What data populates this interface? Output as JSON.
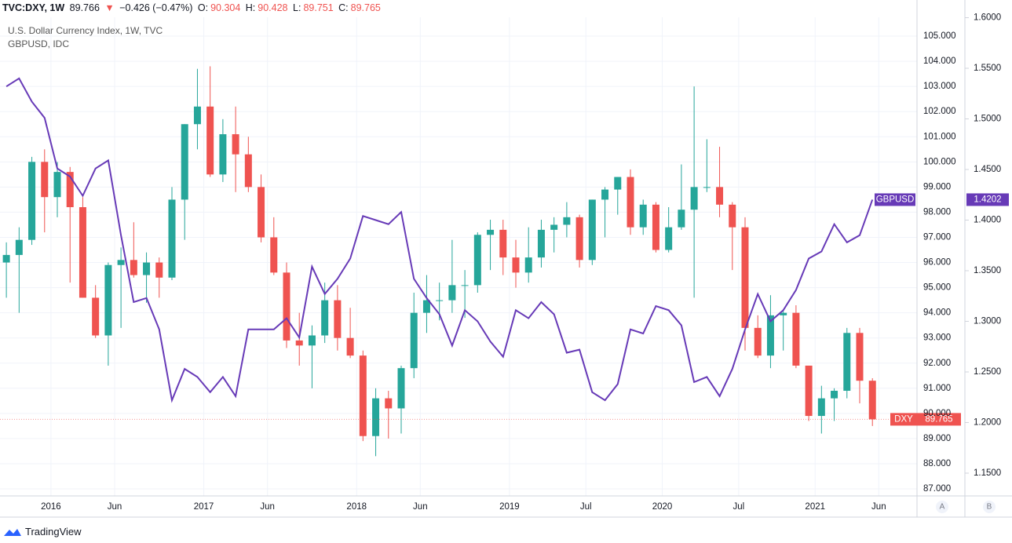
{
  "header": {
    "symbol": "TVC:DXY, 1W",
    "last": "89.766",
    "arrow": "▼",
    "change": "−0.426 (−0.47%)",
    "o_label": "O:",
    "o": "90.304",
    "h_label": "H:",
    "h": "90.428",
    "l_label": "L:",
    "l": "89.751",
    "c_label": "C:",
    "c": "89.765"
  },
  "chart_data": {
    "type": "candlestick",
    "x": [
      "2015-09",
      "2015-10",
      "2015-11",
      "2015-12",
      "2016-01",
      "2016-02",
      "2016-03",
      "2016-04",
      "2016-05",
      "2016-06",
      "2016-07",
      "2016-08",
      "2016-09",
      "2016-10",
      "2016-11",
      "2016-12",
      "2017-01",
      "2017-02",
      "2017-03",
      "2017-04",
      "2017-05",
      "2017-06",
      "2017-07",
      "2017-08",
      "2017-09",
      "2017-10",
      "2017-11",
      "2017-12",
      "2018-01",
      "2018-02",
      "2018-03",
      "2018-04",
      "2018-05",
      "2018-06",
      "2018-07",
      "2018-08",
      "2018-09",
      "2018-10",
      "2018-11",
      "2018-12",
      "2019-01",
      "2019-02",
      "2019-03",
      "2019-04",
      "2019-05",
      "2019-06",
      "2019-07",
      "2019-08",
      "2019-09",
      "2019-10",
      "2019-11",
      "2019-12",
      "2020-01",
      "2020-02",
      "2020-03",
      "2020-04",
      "2020-05",
      "2020-06",
      "2020-07",
      "2020-08",
      "2020-09",
      "2020-10",
      "2020-11",
      "2020-12",
      "2021-01",
      "2021-02",
      "2021-03",
      "2021-04",
      "2021-05"
    ],
    "series": [
      {
        "name": "U.S. Dollar Currency Index, 1W, TVC",
        "tag": "DXY",
        "type": "candlestick",
        "axis": "y",
        "up_color": "#26a69a",
        "down_color": "#ef5350",
        "open": [
          96.0,
          96.3,
          96.9,
          100.0,
          98.6,
          99.6,
          98.2,
          94.6,
          93.1,
          95.9,
          96.1,
          95.5,
          96.0,
          95.4,
          98.5,
          101.5,
          102.2,
          99.5,
          101.1,
          100.3,
          99.0,
          97.0,
          95.6,
          92.9,
          92.7,
          93.1,
          94.5,
          93.0,
          92.3,
          89.1,
          90.6,
          90.2,
          91.8,
          94.0,
          94.5,
          94.5,
          95.1,
          95.1,
          97.1,
          97.3,
          96.2,
          95.6,
          96.2,
          97.3,
          97.5,
          97.8,
          96.1,
          98.5,
          98.9,
          99.4,
          97.4,
          98.3,
          96.5,
          97.4,
          98.1,
          99.0,
          99.0,
          98.3,
          97.4,
          93.4,
          92.3,
          93.9,
          94.0,
          91.9,
          89.9,
          90.6,
          90.9,
          93.2,
          91.3
        ],
        "high": [
          96.8,
          97.4,
          100.2,
          100.5,
          100.0,
          99.8,
          98.6,
          95.1,
          96.0,
          96.6,
          97.6,
          96.4,
          96.2,
          99.0,
          101.5,
          103.7,
          103.8,
          101.7,
          102.2,
          101.0,
          99.5,
          97.8,
          96.0,
          94.0,
          93.5,
          95.2,
          95.1,
          94.2,
          92.5,
          91.0,
          90.9,
          91.9,
          94.8,
          95.5,
          95.2,
          96.9,
          95.7,
          97.2,
          97.7,
          97.7,
          96.9,
          97.4,
          97.7,
          97.8,
          98.4,
          97.9,
          98.5,
          99.0,
          99.4,
          99.7,
          98.5,
          98.4,
          98.2,
          99.9,
          103.0,
          100.9,
          100.6,
          98.4,
          97.8,
          93.9,
          94.7,
          94.1,
          94.3,
          91.9,
          91.1,
          91.0,
          93.4,
          93.4,
          91.4
        ],
        "low": [
          94.6,
          94.0,
          96.7,
          97.2,
          97.8,
          95.2,
          94.6,
          93.0,
          91.9,
          93.4,
          95.4,
          94.4,
          94.6,
          95.3,
          96.9,
          100.5,
          99.4,
          99.2,
          98.8,
          98.8,
          96.8,
          95.5,
          92.6,
          91.9,
          91.0,
          92.8,
          92.5,
          92.2,
          88.9,
          88.3,
          89.0,
          89.2,
          91.4,
          93.2,
          93.7,
          94.0,
          93.8,
          94.8,
          95.7,
          95.5,
          95.0,
          95.2,
          95.8,
          96.4,
          97.0,
          95.8,
          95.9,
          97.0,
          97.9,
          97.1,
          97.1,
          96.4,
          96.4,
          97.3,
          94.6,
          98.8,
          97.8,
          95.7,
          92.5,
          92.2,
          91.8,
          92.5,
          91.8,
          89.7,
          89.2,
          89.7,
          90.6,
          90.4,
          89.5
        ],
        "close": [
          96.3,
          96.9,
          100.0,
          98.6,
          99.6,
          98.2,
          94.6,
          93.1,
          95.9,
          96.1,
          95.5,
          96.0,
          95.4,
          98.5,
          101.5,
          102.2,
          99.5,
          101.1,
          100.3,
          99.0,
          97.0,
          95.6,
          92.9,
          92.7,
          93.1,
          94.5,
          93.0,
          92.3,
          89.1,
          90.6,
          90.2,
          91.8,
          94.0,
          94.5,
          94.5,
          95.1,
          95.1,
          97.1,
          97.3,
          96.2,
          95.6,
          96.2,
          97.3,
          97.5,
          97.8,
          96.1,
          98.5,
          98.9,
          99.4,
          97.4,
          98.3,
          96.5,
          97.4,
          98.1,
          99.0,
          99.0,
          98.3,
          97.4,
          93.4,
          92.3,
          93.9,
          94.0,
          91.9,
          89.9,
          90.6,
          90.9,
          93.2,
          91.3,
          89.765
        ]
      },
      {
        "name": "GBPUSD, IDC",
        "tag": "GBPUSD",
        "type": "line",
        "axis": "y2",
        "color": "#673ab7",
        "values": [
          1.532,
          1.54,
          1.517,
          1.501,
          1.451,
          1.443,
          1.424,
          1.451,
          1.459,
          1.385,
          1.319,
          1.323,
          1.292,
          1.222,
          1.253,
          1.245,
          1.23,
          1.245,
          1.226,
          1.292,
          1.292,
          1.292,
          1.303,
          1.284,
          1.354,
          1.327,
          1.342,
          1.362,
          1.404,
          1.4,
          1.396,
          1.408,
          1.342,
          1.323,
          1.307,
          1.276,
          1.311,
          1.3,
          1.28,
          1.265,
          1.311,
          1.303,
          1.319,
          1.307,
          1.269,
          1.272,
          1.23,
          1.222,
          1.238,
          1.292,
          1.288,
          1.315,
          1.311,
          1.296,
          1.24,
          1.245,
          1.226,
          1.253,
          1.292,
          1.327,
          1.3,
          1.311,
          1.331,
          1.362,
          1.369,
          1.396,
          1.378,
          1.385,
          1.4202
        ]
      }
    ],
    "xlim": [
      "2015-09",
      "2021-09"
    ],
    "xticks": [
      {
        "value": "2016-01",
        "label": "2016"
      },
      {
        "value": "2016-06",
        "label": "Jun"
      },
      {
        "value": "2017-01",
        "label": "2017"
      },
      {
        "value": "2017-06",
        "label": "Jun"
      },
      {
        "value": "2018-01",
        "label": "2018"
      },
      {
        "value": "2018-06",
        "label": "Jun"
      },
      {
        "value": "2019-01",
        "label": "2019"
      },
      {
        "value": "2019-07",
        "label": "Jul"
      },
      {
        "value": "2020-01",
        "label": "2020"
      },
      {
        "value": "2020-07",
        "label": "Jul"
      },
      {
        "value": "2021-01",
        "label": "2021"
      },
      {
        "value": "2021-06",
        "label": "Jun"
      }
    ],
    "ylim": [
      86.72,
      105.75
    ],
    "yticks": [
      {
        "value": 87,
        "label": "87.000"
      },
      {
        "value": 88,
        "label": "88.000"
      },
      {
        "value": 89,
        "label": "89.000"
      },
      {
        "value": 90,
        "label": "90.000"
      },
      {
        "value": 91,
        "label": "91.000"
      },
      {
        "value": 92,
        "label": "92.000"
      },
      {
        "value": 93,
        "label": "93.000"
      },
      {
        "value": 94,
        "label": "94.000"
      },
      {
        "value": 95,
        "label": "95.000"
      },
      {
        "value": 96,
        "label": "96.000"
      },
      {
        "value": 97,
        "label": "97.000"
      },
      {
        "value": 98,
        "label": "98.000"
      },
      {
        "value": 99,
        "label": "99.000"
      },
      {
        "value": 100,
        "label": "100.000"
      },
      {
        "value": 101,
        "label": "101.000"
      },
      {
        "value": 102,
        "label": "102.000"
      },
      {
        "value": 103,
        "label": "103.000"
      },
      {
        "value": 104,
        "label": "104.000"
      },
      {
        "value": 105,
        "label": "105.000"
      }
    ],
    "y2lim": [
      1.1275,
      1.6004
    ],
    "y2ticks": [
      {
        "value": 1.15,
        "label": "1.1500"
      },
      {
        "value": 1.2,
        "label": "1.2000"
      },
      {
        "value": 1.25,
        "label": "1.2500"
      },
      {
        "value": 1.3,
        "label": "1.3000"
      },
      {
        "value": 1.35,
        "label": "1.3500"
      },
      {
        "value": 1.4,
        "label": "1.4000"
      },
      {
        "value": 1.45,
        "label": "1.4500"
      },
      {
        "value": 1.5,
        "label": "1.5000"
      },
      {
        "value": 1.55,
        "label": "1.5500"
      },
      {
        "value": 1.6,
        "label": "1.6000"
      }
    ],
    "grid": true
  },
  "footer": {
    "scale_a": "A",
    "scale_b": "B",
    "brand": "TradingView"
  }
}
